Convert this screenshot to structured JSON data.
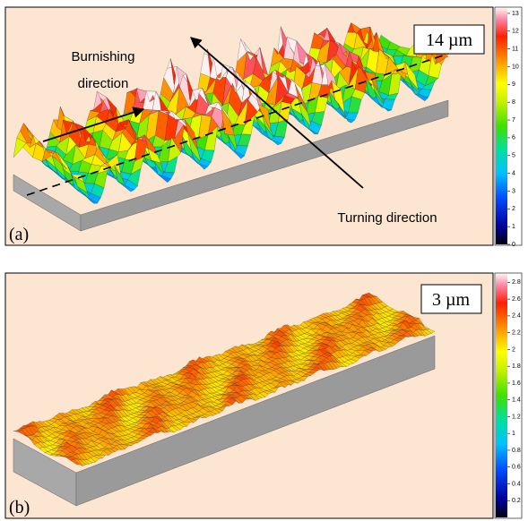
{
  "panels": [
    {
      "label": "(a)",
      "scale": "14 µm",
      "burnishing": [
        "Burnishing",
        "direction"
      ],
      "turning": "Turning direction",
      "colorbar": {
        "lim": [
          0,
          13.3
        ],
        "ticks": [
          0,
          1,
          2,
          3,
          4,
          5,
          6,
          7,
          8,
          9,
          10,
          11,
          12,
          13
        ]
      }
    },
    {
      "label": "(b)",
      "scale": "3 µm",
      "colorbar": {
        "lim": [
          0,
          2.9
        ],
        "ticks": [
          0.2,
          0.4,
          0.6,
          0.8,
          1,
          1.2,
          1.4,
          1.6,
          1.8,
          2,
          2.2,
          2.4,
          2.6,
          2.8
        ]
      }
    }
  ]
}
